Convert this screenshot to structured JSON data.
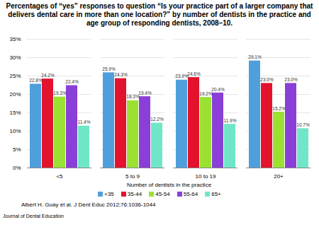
{
  "chart_data": {
    "type": "bar",
    "title": "Percentages of “yes” responses to question “Is your practice part of a larger company that delivers dental care in more than one location?” by number of dentists in the practice and age group of responding dentists, 2008–10.",
    "x_label": "Number of dentists in the practice",
    "categories": [
      "<5",
      "5 to 9",
      "10 to 19",
      "20+"
    ],
    "series": [
      {
        "name": "<35",
        "color": "#4f9fdc",
        "values": [
          22.8,
          25.9,
          23.9,
          29.1
        ],
        "value_labels": [
          "22.8%",
          "25.9%",
          "23.9%",
          "29.1%"
        ]
      },
      {
        "name": "35-44",
        "color": "#e3122d",
        "values": [
          24.2,
          24.3,
          24.6,
          23.0
        ],
        "value_labels": [
          "24.2%",
          "24.3%",
          "24.6%",
          "23.0%"
        ]
      },
      {
        "name": "45-54",
        "color": "#9ae132",
        "values": [
          19.3,
          18.3,
          19.2,
          15.2
        ],
        "value_labels": [
          "19.3%",
          "18.3%",
          "19.2%",
          "15.2%"
        ]
      },
      {
        "name": "55-64",
        "color": "#8a3fd8",
        "values": [
          22.4,
          19.4,
          20.4,
          23.0
        ],
        "value_labels": [
          "22.4%",
          "19.4%",
          "20.4%",
          "23.0%"
        ]
      },
      {
        "name": "65+",
        "color": "#70e6c8",
        "values": [
          11.4,
          12.2,
          11.9,
          10.7
        ],
        "value_labels": [
          "11.4%",
          "12.2%",
          "11.9%",
          "10.7%"
        ]
      }
    ],
    "ylim": [
      0,
      35
    ],
    "yticks": [
      {
        "value": 0,
        "label": "0%"
      },
      {
        "value": 5,
        "label": "5%"
      },
      {
        "value": 10,
        "label": "10%"
      },
      {
        "value": 15,
        "label": "15%"
      },
      {
        "value": 20,
        "label": "20%"
      },
      {
        "value": 25,
        "label": "25%"
      },
      {
        "value": 30,
        "label": "30%"
      },
      {
        "value": 35,
        "label": "35%"
      }
    ],
    "grid": true,
    "data_labels": true,
    "legend": "bottom",
    "annotations": [
      "Albert H. Guay et al. J Dent Educ 2012;76:1036-1044",
      "Journal of Dental Education"
    ]
  }
}
